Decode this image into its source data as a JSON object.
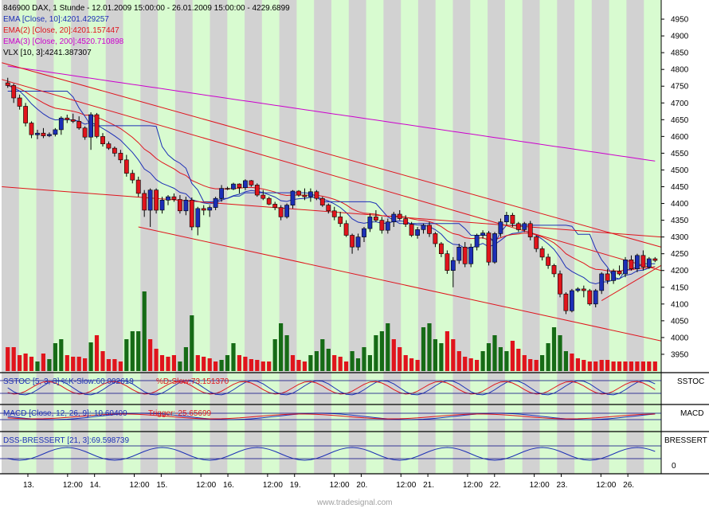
{
  "colors": {
    "band_gray": "#d2d2d2",
    "band_green": "#d8fbd0",
    "up": "#1c2fb6",
    "down": "#e0141c",
    "vol_up": "#166b16",
    "vol_down": "#e0141c",
    "ema10": "#1c2fb6",
    "ema20": "#e0141c",
    "ema200": "#cc00cc",
    "vlx": "#1c2fb6",
    "trend": "#e0141c",
    "osc_blue": "#1c2fb6",
    "osc_red": "#e0141c",
    "ref_line": "#000080"
  },
  "header": {
    "symbol_line": "846900  DAX, 1 Stunde - 12.01.2009 15:00:00 - 26.01.2009 15:00:00 - 4229.6899",
    "legend": [
      {
        "text": "EMA [Close, 10]:4201.429257",
        "color": "#1c2fb6"
      },
      {
        "text": "EMA(2) [Close, 20]:4201.157447",
        "color": "#e0141c"
      },
      {
        "text": "EMA(3) [Close, 200]:4520.710898",
        "color": "#cc00cc"
      },
      {
        "text": "VLX [10, 3]:4241.387307",
        "color": "#000000"
      }
    ]
  },
  "panels": {
    "sstoc": {
      "name": "SSTOC",
      "legend_a": "SSTOC [5, 3, 3] %K-Slow:60.002619",
      "legend_b": "%D-Slow:73.151370"
    },
    "macd": {
      "name": "MACD",
      "legend_a": "MACD [Close, 12, 26, 9]:-10.60409",
      "legend_b": "Trigger:-25.65699"
    },
    "dss": {
      "name": "BRESSERT",
      "legend_a": "DSS-BRESSERT [21, 3]:69.598739",
      "tick": "0"
    }
  },
  "watermark": "www.tradesignal.com",
  "chart_data": {
    "type": "candlestick",
    "title": "846900  DAX, 1 Stunde",
    "ylim": [
      3900,
      5000
    ],
    "y_ticks": [
      3950,
      4000,
      4050,
      4100,
      4150,
      4200,
      4250,
      4300,
      4350,
      4400,
      4450,
      4500,
      4550,
      4600,
      4650,
      4700,
      4750,
      4800,
      4850,
      4900,
      4950
    ],
    "x_labels": [
      "13.",
      "12:00",
      "14.",
      "12:00",
      "15.",
      "12:00",
      "16.",
      "12:00",
      "19.",
      "12:00",
      "20.",
      "12:00",
      "21.",
      "12:00",
      "22.",
      "12:00",
      "23.",
      "12:00",
      "26."
    ],
    "candles": [
      [
        4760,
        4775,
        4745,
        4752
      ],
      [
        4752,
        4758,
        4700,
        4715
      ],
      [
        4715,
        4725,
        4680,
        4690
      ],
      [
        4690,
        4700,
        4630,
        4640
      ],
      [
        4640,
        4645,
        4595,
        4605
      ],
      [
        4605,
        4620,
        4592,
        4610
      ],
      [
        4610,
        4625,
        4595,
        4602
      ],
      [
        4602,
        4612,
        4598,
        4606
      ],
      [
        4606,
        4625,
        4600,
        4620
      ],
      [
        4620,
        4660,
        4605,
        4655
      ],
      [
        4655,
        4665,
        4640,
        4650
      ],
      [
        4650,
        4668,
        4640,
        4645
      ],
      [
        4645,
        4660,
        4620,
        4625
      ],
      [
        4625,
        4630,
        4590,
        4598
      ],
      [
        4598,
        4672,
        4560,
        4665
      ],
      [
        4665,
        4670,
        4595,
        4600
      ],
      [
        4600,
        4610,
        4570,
        4578
      ],
      [
        4578,
        4585,
        4560,
        4565
      ],
      [
        4565,
        4570,
        4540,
        4550
      ],
      [
        4550,
        4560,
        4520,
        4530
      ],
      [
        4530,
        4545,
        4480,
        4490
      ],
      [
        4490,
        4500,
        4460,
        4470
      ],
      [
        4470,
        4480,
        4420,
        4430
      ],
      [
        4430,
        4440,
        4360,
        4380
      ],
      [
        4380,
        4445,
        4330,
        4440
      ],
      [
        4440,
        4445,
        4370,
        4380
      ],
      [
        4380,
        4420,
        4370,
        4410
      ],
      [
        4410,
        4425,
        4395,
        4420
      ],
      [
        4420,
        4430,
        4405,
        4412
      ],
      [
        4412,
        4425,
        4370,
        4378
      ],
      [
        4378,
        4420,
        4365,
        4410
      ],
      [
        4410,
        4418,
        4320,
        4330
      ],
      [
        4330,
        4390,
        4305,
        4385
      ],
      [
        4385,
        4395,
        4365,
        4380
      ],
      [
        4380,
        4395,
        4360,
        4388
      ],
      [
        4388,
        4420,
        4380,
        4415
      ],
      [
        4415,
        4455,
        4405,
        4445
      ],
      [
        4445,
        4450,
        4440,
        4443
      ],
      [
        4443,
        4462,
        4440,
        4458
      ],
      [
        4458,
        4460,
        4430,
        4447
      ],
      [
        4447,
        4472,
        4440,
        4468
      ],
      [
        4468,
        4470,
        4450,
        4455
      ],
      [
        4455,
        4460,
        4420,
        4425
      ],
      [
        4425,
        4440,
        4410,
        4415
      ],
      [
        4415,
        4420,
        4395,
        4398
      ],
      [
        4398,
        4405,
        4380,
        4388
      ],
      [
        4388,
        4395,
        4350,
        4360
      ],
      [
        4360,
        4400,
        4355,
        4395
      ],
      [
        4395,
        4440,
        4385,
        4437
      ],
      [
        4437,
        4440,
        4420,
        4425
      ],
      [
        4425,
        4445,
        4410,
        4420
      ],
      [
        4420,
        4445,
        4405,
        4435
      ],
      [
        4435,
        4440,
        4410,
        4415
      ],
      [
        4415,
        4420,
        4390,
        4395
      ],
      [
        4395,
        4400,
        4370,
        4378
      ],
      [
        4378,
        4390,
        4350,
        4360
      ],
      [
        4360,
        4375,
        4330,
        4340
      ],
      [
        4340,
        4350,
        4300,
        4305
      ],
      [
        4305,
        4310,
        4250,
        4270
      ],
      [
        4270,
        4310,
        4260,
        4300
      ],
      [
        4300,
        4330,
        4285,
        4325
      ],
      [
        4325,
        4370,
        4315,
        4360
      ],
      [
        4360,
        4380,
        4345,
        4350
      ],
      [
        4350,
        4360,
        4310,
        4320
      ],
      [
        4320,
        4355,
        4310,
        4345
      ],
      [
        4345,
        4375,
        4330,
        4368
      ],
      [
        4368,
        4380,
        4350,
        4355
      ],
      [
        4355,
        4365,
        4330,
        4338
      ],
      [
        4338,
        4345,
        4300,
        4305
      ],
      [
        4305,
        4330,
        4295,
        4322
      ],
      [
        4322,
        4340,
        4310,
        4335
      ],
      [
        4335,
        4345,
        4300,
        4310
      ],
      [
        4310,
        4315,
        4270,
        4280
      ],
      [
        4280,
        4285,
        4240,
        4250
      ],
      [
        4250,
        4260,
        4190,
        4200
      ],
      [
        4200,
        4240,
        4150,
        4230
      ],
      [
        4230,
        4280,
        4220,
        4270
      ],
      [
        4270,
        4285,
        4210,
        4220
      ],
      [
        4220,
        4280,
        4210,
        4270
      ],
      [
        4270,
        4310,
        4260,
        4305
      ],
      [
        4305,
        4320,
        4295,
        4312
      ],
      [
        4312,
        4318,
        4215,
        4225
      ],
      [
        4225,
        4315,
        4220,
        4310
      ],
      [
        4310,
        4355,
        4300,
        4345
      ],
      [
        4345,
        4375,
        4335,
        4365
      ],
      [
        4365,
        4372,
        4330,
        4340
      ],
      [
        4340,
        4345,
        4315,
        4322
      ],
      [
        4322,
        4345,
        4315,
        4340
      ],
      [
        4340,
        4348,
        4290,
        4300
      ],
      [
        4300,
        4305,
        4255,
        4265
      ],
      [
        4265,
        4272,
        4230,
        4240
      ],
      [
        4240,
        4250,
        4205,
        4215
      ],
      [
        4215,
        4220,
        4180,
        4190
      ],
      [
        4190,
        4200,
        4120,
        4130
      ],
      [
        4130,
        4135,
        4070,
        4080
      ],
      [
        4080,
        4145,
        4075,
        4140
      ],
      [
        4140,
        4150,
        4135,
        4145
      ],
      [
        4145,
        4155,
        4120,
        4140
      ],
      [
        4140,
        4145,
        4095,
        4100
      ],
      [
        4100,
        4145,
        4090,
        4140
      ],
      [
        4140,
        4195,
        4130,
        4190
      ],
      [
        4190,
        4205,
        4160,
        4170
      ],
      [
        4170,
        4205,
        4160,
        4198
      ],
      [
        4198,
        4215,
        4185,
        4190
      ],
      [
        4190,
        4240,
        4180,
        4232
      ],
      [
        4232,
        4245,
        4200,
        4205
      ],
      [
        4205,
        4250,
        4195,
        4245
      ],
      [
        4245,
        4260,
        4200,
        4210
      ],
      [
        4210,
        4240,
        4205,
        4235
      ],
      [
        4235,
        4240,
        4225,
        4230
      ]
    ],
    "volume": [
      [
        30,
        "down"
      ],
      [
        30,
        "down"
      ],
      [
        20,
        "down"
      ],
      [
        22,
        "down"
      ],
      [
        18,
        "down"
      ],
      [
        12,
        "up"
      ],
      [
        22,
        "down"
      ],
      [
        15,
        "up"
      ],
      [
        35,
        "up"
      ],
      [
        40,
        "up"
      ],
      [
        20,
        "down"
      ],
      [
        18,
        "down"
      ],
      [
        18,
        "down"
      ],
      [
        16,
        "down"
      ],
      [
        36,
        "up"
      ],
      [
        45,
        "down"
      ],
      [
        25,
        "down"
      ],
      [
        15,
        "down"
      ],
      [
        15,
        "down"
      ],
      [
        12,
        "down"
      ],
      [
        40,
        "up"
      ],
      [
        50,
        "up"
      ],
      [
        50,
        "up"
      ],
      [
        100,
        "up"
      ],
      [
        40,
        "down"
      ],
      [
        28,
        "down"
      ],
      [
        20,
        "down"
      ],
      [
        18,
        "down"
      ],
      [
        20,
        "down"
      ],
      [
        12,
        "up"
      ],
      [
        30,
        "up"
      ],
      [
        70,
        "up"
      ],
      [
        20,
        "down"
      ],
      [
        18,
        "down"
      ],
      [
        16,
        "down"
      ],
      [
        12,
        "down"
      ],
      [
        14,
        "up"
      ],
      [
        20,
        "up"
      ],
      [
        35,
        "up"
      ],
      [
        20,
        "down"
      ],
      [
        18,
        "down"
      ],
      [
        15,
        "down"
      ],
      [
        14,
        "down"
      ],
      [
        12,
        "down"
      ],
      [
        12,
        "down"
      ],
      [
        40,
        "up"
      ],
      [
        60,
        "up"
      ],
      [
        45,
        "up"
      ],
      [
        20,
        "down"
      ],
      [
        14,
        "down"
      ],
      [
        12,
        "down"
      ],
      [
        20,
        "up"
      ],
      [
        25,
        "up"
      ],
      [
        40,
        "up"
      ],
      [
        28,
        "up"
      ],
      [
        20,
        "down"
      ],
      [
        18,
        "down"
      ],
      [
        12,
        "down"
      ],
      [
        25,
        "up"
      ],
      [
        16,
        "up"
      ],
      [
        30,
        "up"
      ],
      [
        20,
        "up"
      ],
      [
        45,
        "up"
      ],
      [
        50,
        "up"
      ],
      [
        60,
        "up"
      ],
      [
        40,
        "down"
      ],
      [
        30,
        "down"
      ],
      [
        20,
        "down"
      ],
      [
        16,
        "down"
      ],
      [
        14,
        "down"
      ],
      [
        55,
        "up"
      ],
      [
        60,
        "up"
      ],
      [
        40,
        "up"
      ],
      [
        35,
        "up"
      ],
      [
        50,
        "down"
      ],
      [
        40,
        "down"
      ],
      [
        25,
        "down"
      ],
      [
        18,
        "down"
      ],
      [
        16,
        "down"
      ],
      [
        14,
        "down"
      ],
      [
        25,
        "up"
      ],
      [
        35,
        "up"
      ],
      [
        45,
        "up"
      ],
      [
        30,
        "up"
      ],
      [
        25,
        "up"
      ],
      [
        38,
        "down"
      ],
      [
        28,
        "down"
      ],
      [
        20,
        "down"
      ],
      [
        15,
        "down"
      ],
      [
        14,
        "down"
      ],
      [
        20,
        "up"
      ],
      [
        35,
        "up"
      ],
      [
        55,
        "up"
      ],
      [
        45,
        "up"
      ],
      [
        25,
        "up"
      ],
      [
        22,
        "down"
      ],
      [
        16,
        "down"
      ],
      [
        14,
        "down"
      ],
      [
        12,
        "down"
      ],
      [
        12,
        "down"
      ],
      [
        14,
        "down"
      ],
      [
        14,
        "down"
      ],
      [
        12,
        "down"
      ],
      [
        12,
        "down"
      ],
      [
        12,
        "down"
      ],
      [
        12,
        "down"
      ],
      [
        12,
        "down"
      ],
      [
        12,
        "down"
      ],
      [
        12,
        "down"
      ],
      [
        12,
        "down"
      ]
    ]
  }
}
